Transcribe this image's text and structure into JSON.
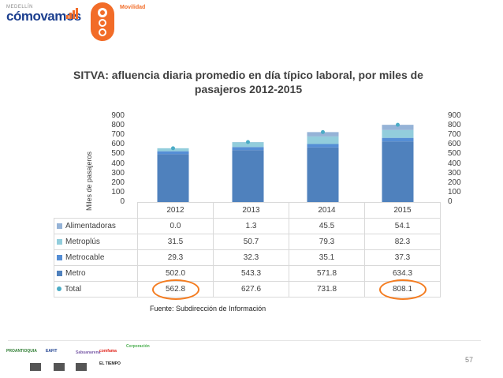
{
  "header": {
    "logo_city": "MEDELLÍN",
    "logo_name": "cómovamos",
    "badge_label": "Movilidad"
  },
  "chart_data": {
    "type": "bar",
    "stacked": true,
    "title": "SITVA: afluencia diaria promedio en día típico laboral, por miles de pasajeros 2012-2015",
    "ylabel": "Miles de pasajeros",
    "ylim": [
      0,
      900
    ],
    "yticks": [
      0,
      100,
      200,
      300,
      400,
      500,
      600,
      700,
      800,
      900
    ],
    "grid": false,
    "categories": [
      "2012",
      "2013",
      "2014",
      "2015"
    ],
    "series": [
      {
        "name": "Alimentadoras",
        "values": [
          "0.0",
          "1.3",
          "45.5",
          "54.1"
        ],
        "color": "#95b3d7"
      },
      {
        "name": "Metroplús",
        "values": [
          "31.5",
          "50.7",
          "79.3",
          "82.3"
        ],
        "color": "#92cddc"
      },
      {
        "name": "Metrocable",
        "values": [
          "29.3",
          "32.3",
          "35.1",
          "37.3"
        ],
        "color": "#558ed5"
      },
      {
        "name": "Metro",
        "values": [
          "502.0",
          "543.3",
          "571.8",
          "634.3"
        ],
        "color": "#4f81bd"
      },
      {
        "name": "Total",
        "values": [
          "562.8",
          "627.6",
          "731.8",
          "808.1"
        ],
        "color": "#4bacc6",
        "style": "marker"
      }
    ],
    "highlighted_cells": [
      [
        "Total",
        "2012"
      ],
      [
        "Total",
        "2015"
      ]
    ],
    "highlight_color": "#f47c20"
  },
  "footer": {
    "source": "Fuente: Subdirección de Información",
    "page": "57",
    "sponsors": [
      "PROANTIOQUIA",
      "EAFIT",
      "Sabuanarena",
      "comfama",
      "Corporación",
      "EL TIEMPO",
      "",
      "",
      ""
    ]
  }
}
